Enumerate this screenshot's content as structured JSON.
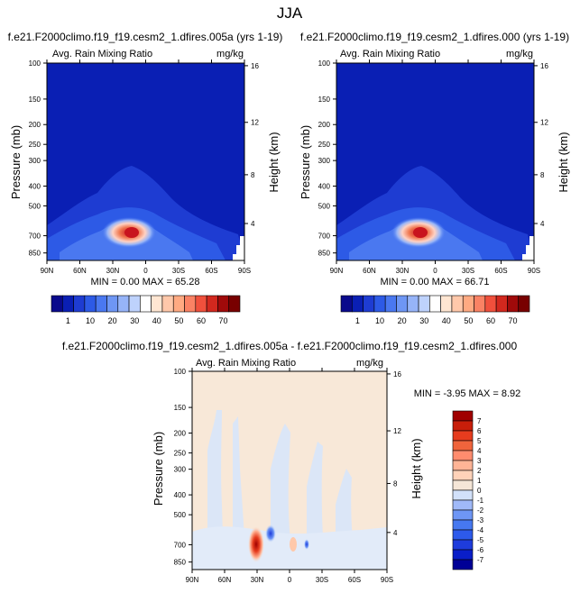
{
  "page_title": "JJA",
  "colors": {
    "top_colorbar": [
      "#0a0a8c",
      "#0a1fb4",
      "#1e3cd2",
      "#2d5ae6",
      "#4a78f0",
      "#6e96f4",
      "#96b4f8",
      "#bed2fc",
      "#ffffff",
      "#ffe6d2",
      "#ffc8aa",
      "#ffaa82",
      "#fa8264",
      "#f0503c",
      "#d2281e",
      "#a00a0a",
      "#780000"
    ],
    "diff_colorbar": [
      "#000096",
      "#0a1ec8",
      "#1e3cdc",
      "#2d5aeb",
      "#4678f0",
      "#6e96f5",
      "#a0b9f8",
      "#d2e1fa",
      "#f5e6d7",
      "#ffd2b9",
      "#ffb496",
      "#ff8c6e",
      "#f0643c",
      "#e63c1e",
      "#c81e0a",
      "#a00000"
    ]
  },
  "chart_data": [
    {
      "type": "heatmap",
      "title": "f.e21.F2000climo.f19_f19.cesm2_1.dfires.005a (yrs 1-19)",
      "left_label": "Avg. Rain Mixing Ratio",
      "right_label": "mg/kg",
      "ylabel": "Pressure (mb)",
      "y2label": "Height (km)",
      "x_ticks": [
        "90N",
        "60N",
        "30N",
        "0",
        "30S",
        "60S",
        "90S"
      ],
      "y_ticks": [
        "100",
        "150",
        "200",
        "250",
        "300",
        "400",
        "500",
        "700",
        "850"
      ],
      "y2_ticks": [
        "16",
        "12",
        "8",
        "4"
      ],
      "stats": "MIN =  0.00  MAX = 65.28",
      "colorbar_labels": [
        "1",
        "10",
        "20",
        "30",
        "40",
        "50",
        "60",
        "70"
      ]
    },
    {
      "type": "heatmap",
      "title": "f.e21.F2000climo.f19_f19.cesm2_1.dfires.000 (yrs 1-19)",
      "left_label": "Avg. Rain Mixing Ratio",
      "right_label": "mg/kg",
      "ylabel": "Pressure (mb)",
      "y2label": "Height (km)",
      "x_ticks": [
        "90N",
        "60N",
        "30N",
        "0",
        "30S",
        "60S",
        "90S"
      ],
      "y_ticks": [
        "100",
        "150",
        "200",
        "250",
        "300",
        "400",
        "500",
        "700",
        "850"
      ],
      "y2_ticks": [
        "16",
        "12",
        "8",
        "4"
      ],
      "stats": "MIN =  0.00  MAX = 66.71",
      "colorbar_labels": [
        "1",
        "10",
        "20",
        "30",
        "40",
        "50",
        "60",
        "70"
      ]
    },
    {
      "type": "heatmap",
      "title": "f.e21.F2000climo.f19_f19.cesm2_1.dfires.005a - f.e21.F2000climo.f19_f19.cesm2_1.dfires.000",
      "left_label": "Avg. Rain Mixing Ratio",
      "right_label": "mg/kg",
      "ylabel": "Pressure (mb)",
      "y2label": "Height (km)",
      "x_ticks": [
        "90N",
        "60N",
        "30N",
        "0",
        "30S",
        "60S",
        "90S"
      ],
      "y_ticks": [
        "100",
        "150",
        "200",
        "250",
        "300",
        "400",
        "500",
        "700",
        "850"
      ],
      "y2_ticks": [
        "16",
        "12",
        "8",
        "4"
      ],
      "stats": "MIN = -3.95  MAX =  8.92",
      "colorbar_labels": [
        "7",
        "6",
        "5",
        "4",
        "3",
        "2",
        "1",
        "0",
        "-1",
        "-2",
        "-3",
        "-4",
        "-5",
        "-6",
        "-7"
      ]
    }
  ]
}
